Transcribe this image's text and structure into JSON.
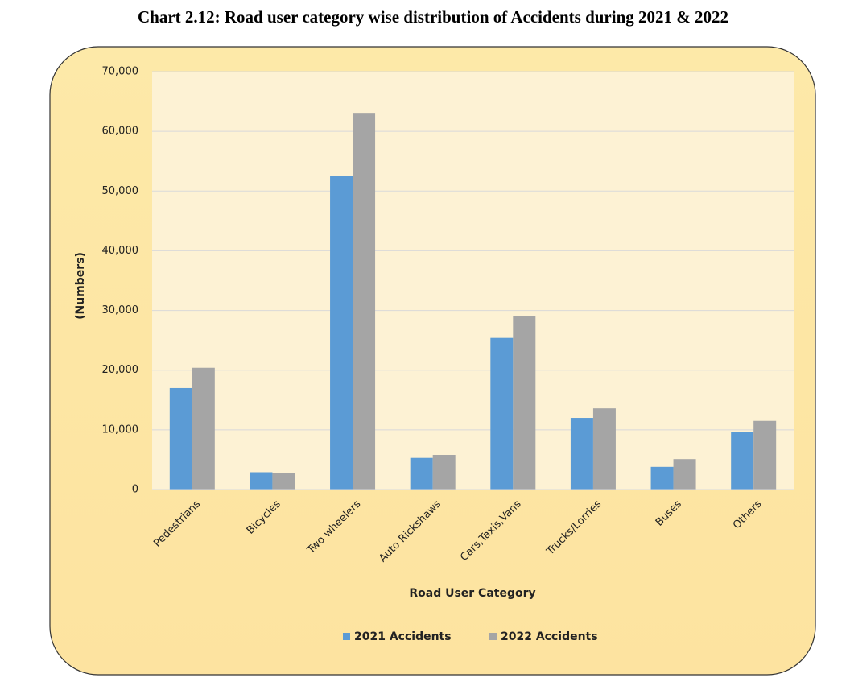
{
  "chart_data": {
    "type": "bar",
    "title": "Chart 2.12: Road user category wise distribution of Accidents during 2021 & 2022",
    "x_label": "Road User Category",
    "y_label": "(Numbers)",
    "categories": [
      "Pedestrians",
      "Bicycles",
      "Two wheelers",
      "Auto Rickshaws",
      "Cars,Taxis,Vans",
      "Trucks/Lorries",
      "Buses",
      "Others"
    ],
    "series": [
      {
        "name": "2021 Accidents",
        "color": "#5b9bd5",
        "values": [
          17000,
          2900,
          52500,
          5300,
          25400,
          12000,
          3800,
          9600
        ]
      },
      {
        "name": "2022 Accidents",
        "color": "#a5a5a5",
        "values": [
          20400,
          2800,
          63100,
          5800,
          29000,
          13600,
          5100,
          11500
        ]
      }
    ],
    "ylim": [
      0,
      70000
    ],
    "yticks": [
      0,
      {
        "value": 10000,
        "label": "10,000"
      },
      {
        "value": 20000,
        "label": "20,000"
      },
      {
        "value": 30000,
        "label": "30,000"
      },
      {
        "value": 40000,
        "label": "40,000"
      },
      {
        "value": 50000,
        "label": "50,000"
      },
      {
        "value": 60000,
        "label": "60,000"
      },
      {
        "value": 70000,
        "label": "70,000"
      }
    ],
    "grid": true,
    "legend": "bottom"
  }
}
